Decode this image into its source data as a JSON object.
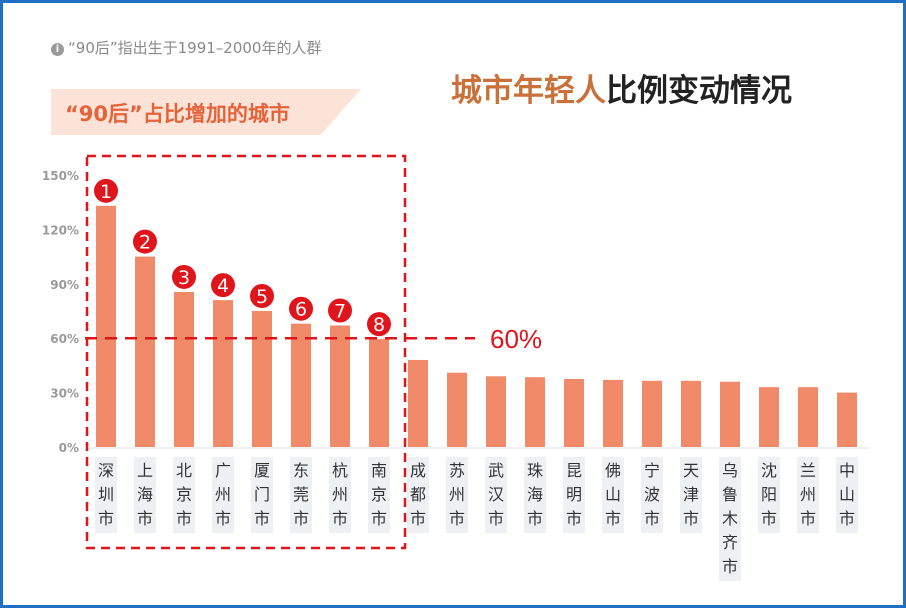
{
  "note": {
    "icon": "info-icon",
    "text": "“90后”指出生于1991–2000年的人群"
  },
  "banner": "“90后”占比增加的城市",
  "title": {
    "highlight": "城市年轻人",
    "rest": "比例变动情况"
  },
  "threshold_label": "60%",
  "colors": {
    "bar": "#f08a69",
    "annotation": "#e0141b",
    "frame": "#1f6fc4",
    "title_highlight": "#c8713a"
  },
  "chart_data": {
    "type": "bar",
    "categories": [
      "深圳市",
      "上海市",
      "北京市",
      "广州市",
      "厦门市",
      "东莞市",
      "杭州市",
      "南京市",
      "成都市",
      "苏州市",
      "武汉市",
      "珠海市",
      "昆明市",
      "佛山市",
      "宁波市",
      "天津市",
      "乌鲁木齐市",
      "沈阳市",
      "兰州市",
      "中山市"
    ],
    "values": [
      133,
      105,
      85.5,
      81,
      75,
      68,
      67,
      59.5,
      48,
      41,
      39,
      38.5,
      37.5,
      37,
      36.5,
      36.5,
      36,
      33,
      33,
      30
    ],
    "unit": "%",
    "ylim": [
      0,
      150
    ],
    "yticks": [
      "0%",
      "30%",
      "60%",
      "90%",
      "120%",
      "150%"
    ],
    "reference_line": 60,
    "highlighted_ranks": [
      "1",
      "2",
      "3",
      "4",
      "5",
      "6",
      "7",
      "8"
    ],
    "grid": false
  }
}
